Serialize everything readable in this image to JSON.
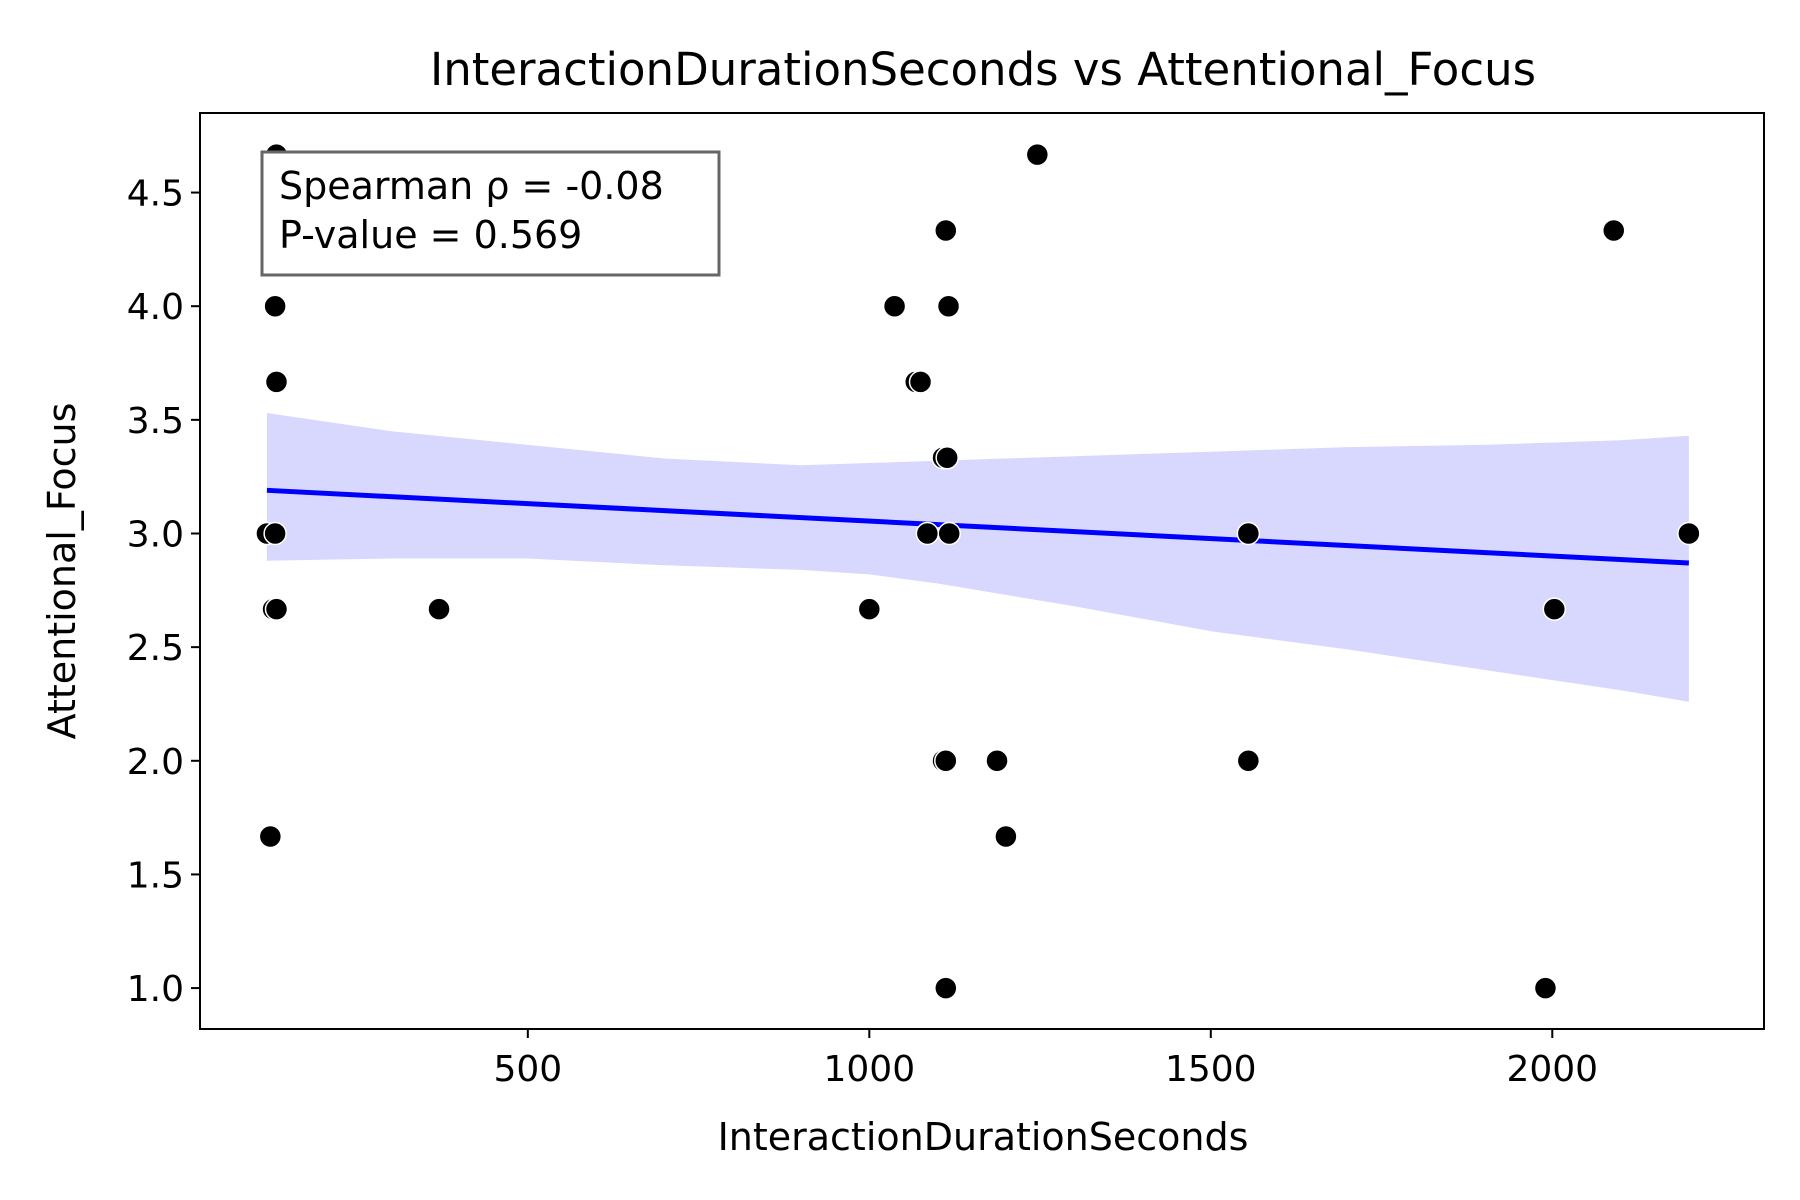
{
  "chart_data": {
    "type": "scatter",
    "title": "InteractionDurationSeconds vs Attentional_Focus",
    "xlabel": "InteractionDurationSeconds",
    "ylabel": "Attentional_Focus",
    "xlim": [
      20,
      2310
    ],
    "ylim": [
      0.82,
      4.85
    ],
    "x_ticks": [
      500,
      1000,
      1500,
      2000
    ],
    "x_tick_labels": [
      "500",
      "1000",
      "1500",
      "2000"
    ],
    "y_ticks": [
      1.0,
      1.5,
      2.0,
      2.5,
      3.0,
      3.5,
      4.0,
      4.5
    ],
    "y_tick_labels": [
      "1.0",
      "1.5",
      "2.0",
      "2.5",
      "3.0",
      "3.5",
      "4.0",
      "4.5"
    ],
    "grid": false,
    "stats_box": {
      "line1": "Spearman ρ = -0.08",
      "line2": "P-value = 0.569",
      "placement": "top-left"
    },
    "colors": {
      "points": "#000000",
      "regression_line": "#0000ff",
      "confidence_band": "#d8d8ff"
    },
    "points": [
      {
        "x": 132,
        "y": 4.667
      },
      {
        "x": 130,
        "y": 4.0
      },
      {
        "x": 132,
        "y": 3.667
      },
      {
        "x": 118,
        "y": 3.0
      },
      {
        "x": 130,
        "y": 3.0
      },
      {
        "x": 127,
        "y": 2.667
      },
      {
        "x": 132,
        "y": 2.667
      },
      {
        "x": 123,
        "y": 1.667
      },
      {
        "x": 370,
        "y": 2.667
      },
      {
        "x": 1000,
        "y": 2.667
      },
      {
        "x": 1037,
        "y": 4.0
      },
      {
        "x": 1068,
        "y": 3.667
      },
      {
        "x": 1075,
        "y": 3.667
      },
      {
        "x": 1085,
        "y": 3.0
      },
      {
        "x": 1108,
        "y": 3.333
      },
      {
        "x": 1114,
        "y": 3.333
      },
      {
        "x": 1112,
        "y": 4.333
      },
      {
        "x": 1116,
        "y": 4.0
      },
      {
        "x": 1117,
        "y": 3.0
      },
      {
        "x": 1108,
        "y": 2.0
      },
      {
        "x": 1112,
        "y": 2.0
      },
      {
        "x": 1112,
        "y": 1.0
      },
      {
        "x": 1187,
        "y": 2.0
      },
      {
        "x": 1200,
        "y": 1.667
      },
      {
        "x": 1246,
        "y": 4.667
      },
      {
        "x": 1555,
        "y": 3.0
      },
      {
        "x": 1555,
        "y": 2.0
      },
      {
        "x": 1990,
        "y": 1.0
      },
      {
        "x": 2003,
        "y": 2.667
      },
      {
        "x": 2090,
        "y": 4.333
      },
      {
        "x": 2200,
        "y": 3.0
      }
    ],
    "regression": {
      "x": [
        118,
        2200
      ],
      "y": [
        3.19,
        2.87
      ]
    },
    "confidence_band": {
      "x": [
        118,
        300,
        500,
        700,
        900,
        1000,
        1100,
        1200,
        1300,
        1500,
        1700,
        1900,
        2100,
        2200
      ],
      "upper": [
        3.53,
        3.45,
        3.39,
        3.33,
        3.3,
        3.31,
        3.32,
        3.33,
        3.34,
        3.36,
        3.38,
        3.39,
        3.41,
        3.43
      ],
      "lower": [
        2.88,
        2.89,
        2.89,
        2.86,
        2.84,
        2.82,
        2.78,
        2.73,
        2.68,
        2.57,
        2.49,
        2.4,
        2.31,
        2.26
      ]
    }
  }
}
